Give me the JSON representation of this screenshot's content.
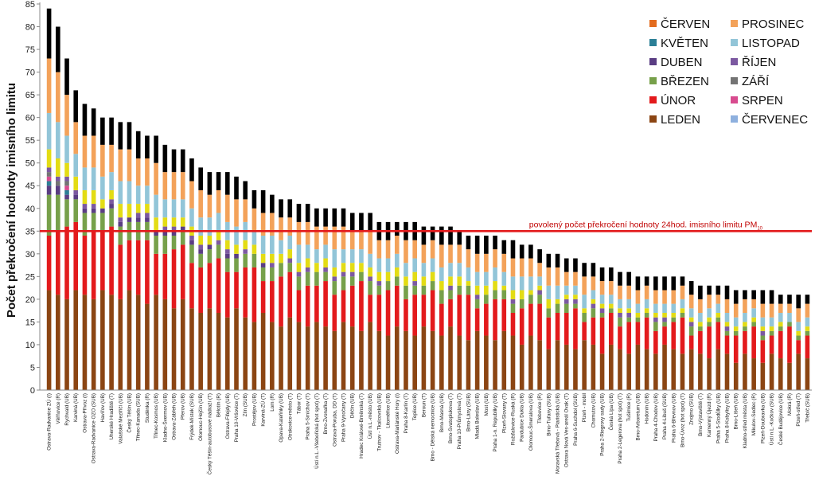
{
  "chart_data": {
    "type": "bar",
    "stacked": true,
    "ylabel": "Počet překročení hodnoty imisního limitu",
    "ylim": [
      0,
      85
    ],
    "yticks": [
      0,
      5,
      10,
      15,
      20,
      25,
      30,
      35,
      40,
      45,
      50,
      55,
      60,
      65,
      70,
      75,
      80,
      85
    ],
    "grid": false,
    "legend_position": "top-right",
    "limit_line": {
      "value": 35,
      "label": "povolený počet překročení hodnoty 24hod. imisního limitu PM",
      "subscript": "10",
      "color": "#e31a1c"
    },
    "categories": [
      "Ostrava-Radvanice ZÚ (I)",
      "Věřňovice (R)",
      "Rychvald (UB)",
      "Karviná (UB)",
      "Ostrava-Přívoz (I)",
      "Ostrava-Radvanice OZO (SUB)",
      "Havířov (UB)",
      "Uherské Hradiště (T)",
      "Valašské Meziříčí (UB)",
      "Český Těšín (UB)",
      "Třinec-Kanada (SUB)",
      "Studénka (R)",
      "Třinec-Kosmos (UB)",
      "Kladno-Švermov (UB)",
      "Ostrava-Zábřeh (UB)",
      "Přerov (UB)",
      "Frýdek-Místek (SUB)",
      "Olomouc-Hejčín (UB)",
      "Český Těšín-autobusové nádraží (T)",
      "Bělotín (R)",
      "Ostrava-Fifejdy (UB)",
      "Praha 10-Vršovice (T)",
      "Zlín (SUB)",
      "Prostějov (UB)",
      "Karviná-ZÚ (T)",
      "Lom (R)",
      "Opava-Kateřinky (UB)",
      "Otrokovice-město (T)",
      "Tábor (T)",
      "Praha 5-Smíchov (T)",
      "Ústí n.L.-Všebořická (hot spot) (T)",
      "Brno-Zvonařka (T)",
      "Ostrava-Poruba, DD (T)",
      "Praha 9-Vysočany (T)",
      "Děčín (UB)",
      "Hradec Králové-Brněnská (T)",
      "Ústí n.L.-město (UB)",
      "Trutnov - Tkalcovská (UB)",
      "Litoměřice (UB)",
      "Ostrava-Mariánské Hory (I)",
      "Praha 8-Karlín (T)",
      "Teplice (UB)",
      "Beroun (T)",
      "Brno - Dětská nemocnice (UB)",
      "Brno-Masná (UB)",
      "Brno-Svatoplukova (T)",
      "Praha 10-Průmyslová (T)",
      "Brno-Lány (SUB)",
      "Mladá Boleslav (UB)",
      "Most (UB)",
      "Praha 1-n. Republiky (UB)",
      "Plzeň-Slovany (T)",
      "Rožďalovice-Ruská (R)",
      "Pardubice Dukla (UB)",
      "Olomouc-Šmeralova (UB)",
      "Třebovice (R)",
      "Brno-Tuřany (SUB)",
      "Moravská Třebová - Piaristická (UB)",
      "Ostrava Nová Ves-areál Ovak (T)",
      "Praha 6-Suchdol (SUB)",
      "Plzeň - mobil",
      "Chomutov (UB)",
      "Praha 2-Riegrovy sady (UB)",
      "Česká Lípa (UB)",
      "Praha 2-Legerova (hot spot) (T)",
      "Tušimice (R)",
      "Brno-Arboretum (UB)",
      "Hodonín (UB)",
      "Praha 4-Chodov (UB)",
      "Praha 4-Libuš (SUB)",
      "Praha 6-Břevnov (UB)",
      "Brno-Úvoz (hot spot) (T)",
      "Znojmo (SUB)",
      "Brno-Výstaviště (T)",
      "Kamenný Újezd (R)",
      "Praha 5-Stodůlky (UB)",
      "Praha 8-Kobylisy (UB)",
      "Brno-Líšeň (UB)",
      "Kladno-střed města (UB)",
      "Mikulov-Sedlec (R)",
      "Plzeň-Doubravka (UB)",
      "Ústí n.L.-Kočkov (SUB)",
      "České Budějovice (UB)",
      "Mokrá (R)",
      "Plzeň-střed (T)",
      "Třebíč (SUB)"
    ],
    "totals": [
      84,
      80,
      73,
      66,
      63,
      62,
      60,
      60,
      59,
      59,
      57,
      56,
      56,
      54,
      53,
      53,
      51,
      49,
      48,
      48,
      48,
      47,
      46,
      44,
      44,
      43,
      42,
      42,
      41,
      41,
      40,
      40,
      40,
      40,
      39,
      39,
      39,
      37,
      37,
      37,
      37,
      37,
      36,
      36,
      36,
      36,
      35,
      34,
      34,
      34,
      34,
      33,
      33,
      32,
      32,
      31,
      30,
      30,
      29,
      29,
      28,
      28,
      27,
      27,
      26,
      26,
      25,
      25,
      25,
      25,
      25,
      25,
      24,
      23,
      23,
      23,
      23,
      22,
      22,
      22,
      22,
      22,
      21,
      21,
      21,
      21
    ],
    "series": [
      {
        "name": "LEDEN",
        "color": "#8b4513"
      },
      {
        "name": "ÚNOR",
        "color": "#e31a1c"
      },
      {
        "name": "BŘEZEN",
        "color": "#77a04a"
      },
      {
        "name": "DUBEN",
        "color": "#5a3d83"
      },
      {
        "name": "KVĚTEN",
        "color": "#2b7f96"
      },
      {
        "name": "ČERVEN",
        "color": "#e36c1f"
      },
      {
        "name": "ČERVENEC",
        "color": "#8eb0de"
      },
      {
        "name": "SRPEN",
        "color": "#d84b8f"
      },
      {
        "name": "ZÁŘÍ",
        "color": "#747474"
      },
      {
        "name": "ŘÍJEN",
        "color": "#7c59a1"
      },
      {
        "name": "LISTOPAD",
        "color": "#92c5d8"
      },
      {
        "name": "PROSINEC",
        "color": "#f3a25a"
      }
    ],
    "extra_series": [
      {
        "name": "",
        "color": "#e3dc14"
      }
    ],
    "stack_order": [
      0,
      1,
      2,
      3,
      4,
      7,
      8,
      9,
      12,
      10,
      11
    ],
    "legend_order": [
      5,
      11,
      4,
      10,
      3,
      9,
      2,
      8,
      1,
      7,
      0,
      6
    ]
  }
}
